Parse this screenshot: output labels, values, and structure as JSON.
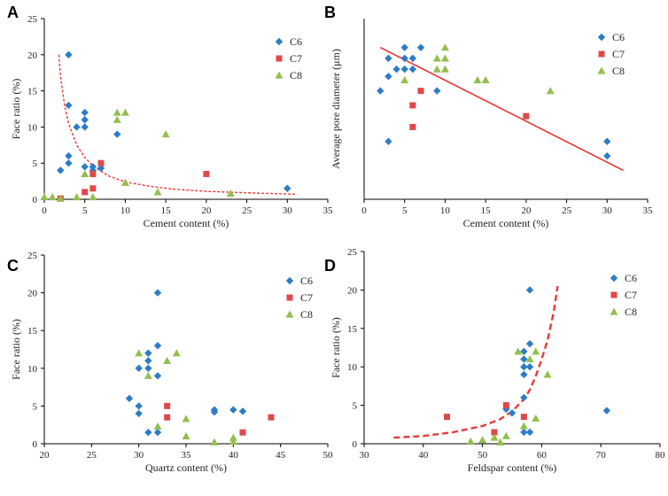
{
  "colors": {
    "C6": "#2e7cc4",
    "C7": "#e04848",
    "C8": "#93bf4e",
    "fit": "#e83a3a"
  },
  "chart_data": [
    {
      "type": "scatter",
      "panel": "A",
      "title": "",
      "xlabel": "Cement content (%)",
      "ylabel": "Face ratio (%)",
      "xlim": [
        0,
        35
      ],
      "ylim": [
        0,
        25
      ],
      "xticks": [
        0,
        5,
        10,
        15,
        20,
        25,
        30,
        35
      ],
      "yticks": [
        0,
        5,
        10,
        15,
        20,
        25
      ],
      "legend": "top-right",
      "series": [
        {
          "name": "C6",
          "marker": "diamond",
          "points": [
            [
              3,
              20
            ],
            [
              3,
              13
            ],
            [
              2,
              4
            ],
            [
              3,
              5
            ],
            [
              3,
              6
            ],
            [
              4,
              10
            ],
            [
              5,
              10
            ],
            [
              5,
              11
            ],
            [
              5,
              12
            ],
            [
              5,
              4.5
            ],
            [
              6,
              4.5
            ],
            [
              6,
              4
            ],
            [
              7,
              4.3
            ],
            [
              9,
              9
            ],
            [
              30,
              1.5
            ]
          ]
        },
        {
          "name": "C7",
          "marker": "square",
          "points": [
            [
              2,
              0.1
            ],
            [
              5,
              1
            ],
            [
              6,
              1.5
            ],
            [
              6,
              3.5
            ],
            [
              7,
              5
            ],
            [
              20,
              3.5
            ]
          ]
        },
        {
          "name": "C8",
          "marker": "triangle",
          "points": [
            [
              0,
              0.3
            ],
            [
              1,
              0.3
            ],
            [
              2,
              0.1
            ],
            [
              4,
              0.3
            ],
            [
              5,
              3.5
            ],
            [
              6,
              0.3
            ],
            [
              9,
              11
            ],
            [
              9,
              12
            ],
            [
              10,
              12
            ],
            [
              10,
              2.3
            ],
            [
              14,
              1
            ],
            [
              15,
              9
            ],
            [
              23,
              0.8
            ]
          ]
        }
      ],
      "fit": {
        "style": "dashed-thin",
        "points": [
          [
            1.8,
            20
          ],
          [
            2,
            17
          ],
          [
            2.5,
            13
          ],
          [
            3,
            10.5
          ],
          [
            4,
            7.5
          ],
          [
            5,
            5.8
          ],
          [
            6,
            4.6
          ],
          [
            8,
            3.2
          ],
          [
            10,
            2.4
          ],
          [
            13,
            1.8
          ],
          [
            16,
            1.4
          ],
          [
            20,
            1.1
          ],
          [
            25,
            0.9
          ],
          [
            31,
            0.7
          ]
        ]
      }
    },
    {
      "type": "scatter",
      "panel": "B",
      "title": "",
      "xlabel": "Cement content (%)",
      "ylabel": "Average pore diameter (μm)",
      "xlim": [
        0,
        35
      ],
      "ylim": [
        0,
        25
      ],
      "xticks": [
        0,
        5,
        10,
        15,
        20,
        25,
        30,
        35
      ],
      "yticks": [],
      "legend": "top-right",
      "series": [
        {
          "name": "C6",
          "marker": "diamond",
          "points": [
            [
              2,
              15
            ],
            [
              3,
              17
            ],
            [
              3,
              19.5
            ],
            [
              3,
              8
            ],
            [
              4,
              18
            ],
            [
              5,
              18
            ],
            [
              5,
              19.5
            ],
            [
              5,
              21
            ],
            [
              6,
              19.5
            ],
            [
              6,
              18
            ],
            [
              7,
              21
            ],
            [
              9,
              15
            ],
            [
              30,
              8
            ],
            [
              30,
              6
            ]
          ]
        },
        {
          "name": "C7",
          "marker": "square",
          "points": [
            [
              6,
              13
            ],
            [
              6,
              10
            ],
            [
              7,
              15
            ],
            [
              20,
              11.5
            ]
          ]
        },
        {
          "name": "C8",
          "marker": "triangle",
          "points": [
            [
              5,
              16.5
            ],
            [
              9,
              18
            ],
            [
              9,
              19.5
            ],
            [
              10,
              21
            ],
            [
              10,
              19.5
            ],
            [
              10,
              18
            ],
            [
              14,
              16.5
            ],
            [
              15,
              16.5
            ],
            [
              23,
              15
            ]
          ]
        }
      ],
      "fit": {
        "style": "solid",
        "points": [
          [
            2,
            21
          ],
          [
            32,
            4
          ]
        ]
      }
    },
    {
      "type": "scatter",
      "panel": "C",
      "title": "",
      "xlabel": "Quartz content (%)",
      "ylabel": "Face ratio (%)",
      "xlim": [
        20,
        50
      ],
      "ylim": [
        0,
        25
      ],
      "xticks": [
        20,
        25,
        30,
        35,
        40,
        45,
        50
      ],
      "yticks": [
        0,
        5,
        10,
        15,
        20,
        25
      ],
      "legend": "top-right",
      "series": [
        {
          "name": "C6",
          "marker": "diamond",
          "points": [
            [
              29,
              6
            ],
            [
              30,
              4
            ],
            [
              30,
              5
            ],
            [
              30,
              10
            ],
            [
              31,
              10
            ],
            [
              31,
              11
            ],
            [
              31,
              12
            ],
            [
              31,
              1.5
            ],
            [
              32,
              20
            ],
            [
              32,
              13
            ],
            [
              32,
              9
            ],
            [
              32,
              1.5
            ],
            [
              38,
              4.5
            ],
            [
              38,
              4.2
            ],
            [
              40,
              4.5
            ],
            [
              41,
              4.3
            ]
          ]
        },
        {
          "name": "C7",
          "marker": "square",
          "points": [
            [
              33,
              5
            ],
            [
              33,
              3.5
            ],
            [
              41,
              1.5
            ],
            [
              44,
              3.5
            ]
          ]
        },
        {
          "name": "C8",
          "marker": "triangle",
          "points": [
            [
              30,
              12
            ],
            [
              31,
              9
            ],
            [
              32,
              2.3
            ],
            [
              33,
              11
            ],
            [
              34,
              12
            ],
            [
              35,
              3.3
            ],
            [
              35,
              1
            ],
            [
              38,
              0.2
            ],
            [
              40,
              0.3
            ],
            [
              40,
              0.8
            ]
          ]
        }
      ]
    },
    {
      "type": "scatter",
      "panel": "D",
      "title": "",
      "xlabel": "Feldspar content (%)",
      "ylabel": "Face ratio (%)",
      "xlim": [
        30,
        80
      ],
      "ylim": [
        0,
        25
      ],
      "xticks": [
        30,
        40,
        50,
        60,
        70,
        80
      ],
      "yticks": [
        0,
        5,
        10,
        15,
        20,
        25
      ],
      "legend": "top-right",
      "series": [
        {
          "name": "C6",
          "marker": "diamond",
          "points": [
            [
              54,
              4.5
            ],
            [
              55,
              4
            ],
            [
              57,
              12
            ],
            [
              57,
              11
            ],
            [
              57,
              10
            ],
            [
              57,
              9
            ],
            [
              57,
              6
            ],
            [
              57,
              1.5
            ],
            [
              58,
              20
            ],
            [
              58,
              13
            ],
            [
              58,
              10
            ],
            [
              58,
              1.5
            ],
            [
              71,
              4.3
            ]
          ]
        },
        {
          "name": "C7",
          "marker": "square",
          "points": [
            [
              44,
              3.5
            ],
            [
              52,
              1.5
            ],
            [
              54,
              5
            ],
            [
              57,
              3.5
            ]
          ]
        },
        {
          "name": "C8",
          "marker": "triangle",
          "points": [
            [
              48,
              0.3
            ],
            [
              50,
              0.5
            ],
            [
              52,
              0.8
            ],
            [
              53,
              0.2
            ],
            [
              54,
              1
            ],
            [
              56,
              12
            ],
            [
              57,
              2.3
            ],
            [
              58,
              11
            ],
            [
              59,
              3.3
            ],
            [
              59,
              12
            ],
            [
              61,
              9
            ]
          ]
        }
      ],
      "fit": {
        "style": "dashed-thick",
        "points": [
          [
            35,
            0.8
          ],
          [
            40,
            1
          ],
          [
            45,
            1.5
          ],
          [
            50,
            2.3
          ],
          [
            53,
            3.2
          ],
          [
            55,
            4.2
          ],
          [
            57,
            5.8
          ],
          [
            58,
            7
          ],
          [
            59,
            8.8
          ],
          [
            60,
            11
          ],
          [
            61,
            13.5
          ],
          [
            62,
            17
          ],
          [
            62.7,
            20.5
          ]
        ]
      }
    }
  ]
}
